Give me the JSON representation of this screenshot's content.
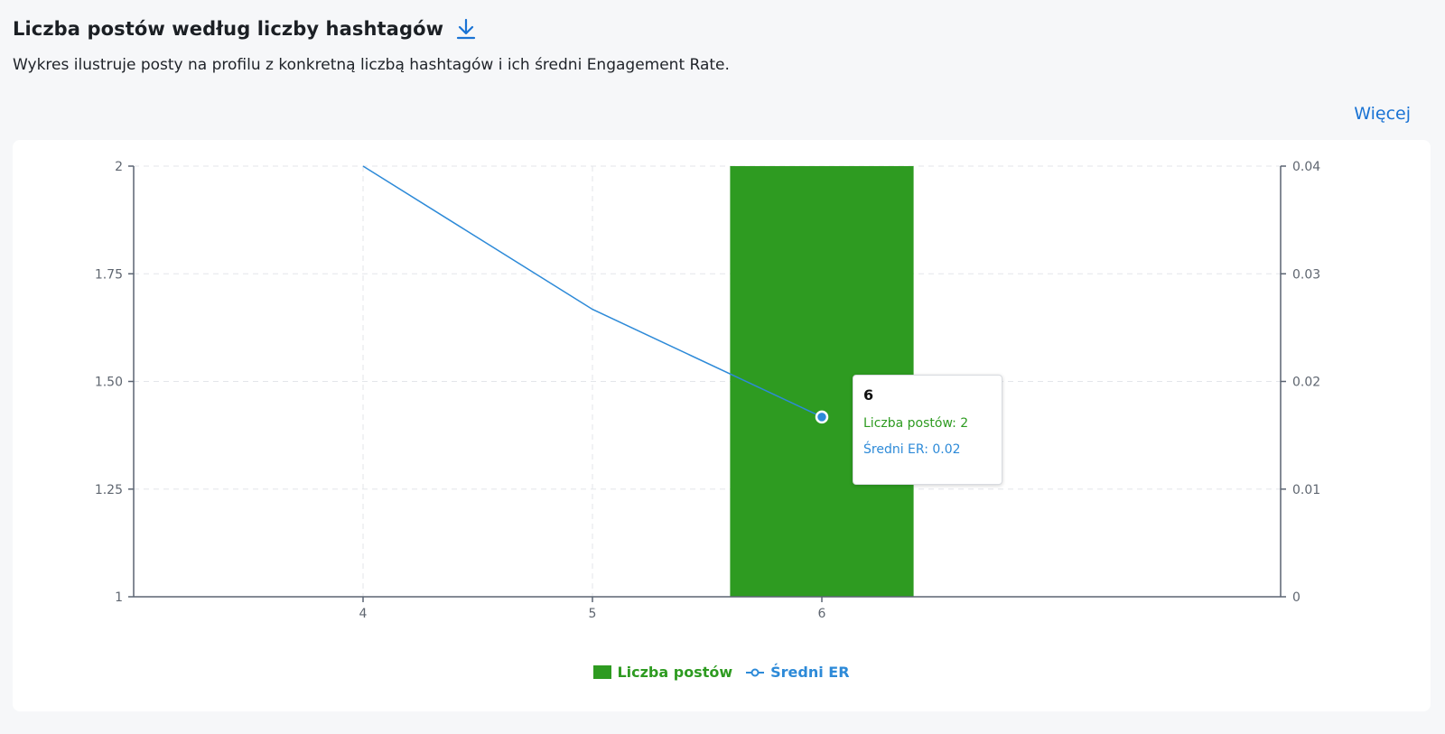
{
  "header": {
    "title": "Liczba postów według liczby hashtagów",
    "download_icon": "download-icon",
    "subtitle": "Wykres ilustruje posty na profilu z konkretną liczbą hashtagów i ich średni Engagement Rate.",
    "more_link": "Więcej"
  },
  "colors": {
    "bar": "#2e9b21",
    "line": "#2d8ad8",
    "accent": "#1a73d4"
  },
  "chart_data": {
    "type": "bar",
    "categories": [
      "4",
      "5",
      "6"
    ],
    "series": [
      {
        "name": "Liczba postów",
        "type": "bar",
        "axis": "left",
        "values": [
          null,
          null,
          2
        ]
      },
      {
        "name": "Średni ER",
        "type": "line",
        "axis": "right",
        "values": [
          0.04,
          0.0267,
          0.0167
        ]
      }
    ],
    "y_left": {
      "range": [
        1,
        2
      ],
      "ticks": [
        "2",
        "1.75",
        "1.50",
        "1.25",
        "1"
      ]
    },
    "y_right": {
      "range": [
        0,
        0.04
      ],
      "ticks": [
        "0.04",
        "0.03",
        "0.02",
        "0.01",
        "0"
      ]
    },
    "grid": true,
    "legend_position": "bottom-center",
    "tooltip": {
      "title": "6",
      "rows": [
        {
          "label": "Liczba postów: 2",
          "series": "Liczba postów"
        },
        {
          "label": "Średni ER: 0.02",
          "series": "Średni ER"
        }
      ]
    }
  }
}
